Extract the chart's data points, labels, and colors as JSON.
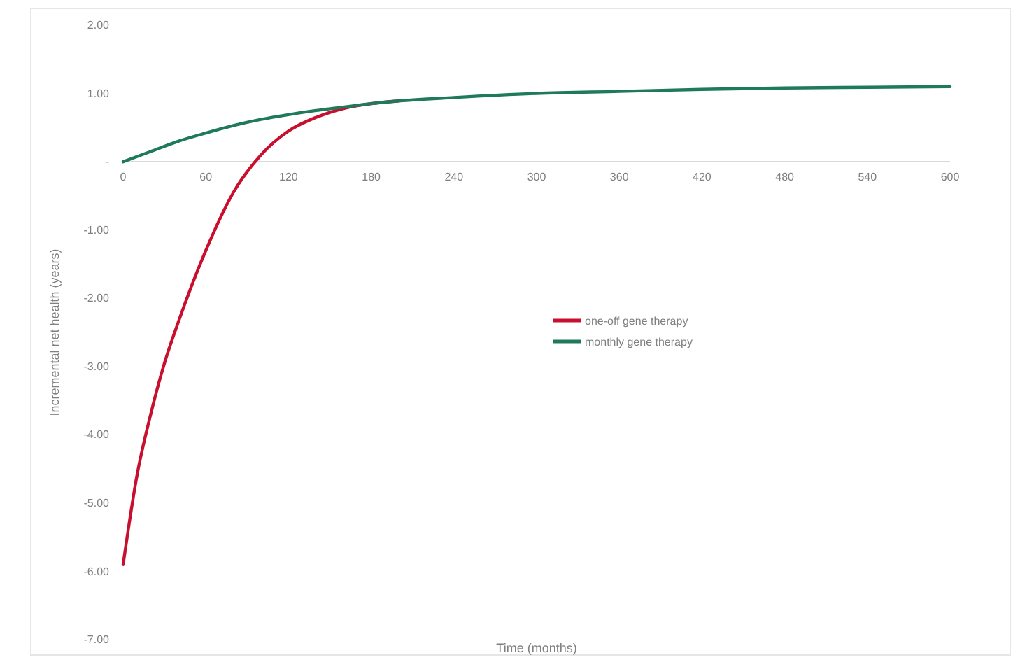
{
  "chart_data": {
    "type": "line",
    "xlabel": "Time (months)",
    "ylabel": "Incremental net health (years)",
    "xlim": [
      0,
      600
    ],
    "xticks": [
      0,
      60,
      120,
      180,
      240,
      300,
      360,
      420,
      480,
      540,
      600
    ],
    "ylim": [
      -7,
      2
    ],
    "yticks": [
      {
        "value": -7,
        "label": "-7.00"
      },
      {
        "value": -6,
        "label": "-6.00"
      },
      {
        "value": -5,
        "label": "-5.00"
      },
      {
        "value": -4,
        "label": "-4.00"
      },
      {
        "value": -3,
        "label": "-3.00"
      },
      {
        "value": -2,
        "label": "-2.00"
      },
      {
        "value": -1,
        "label": "-1.00"
      },
      {
        "value": 0,
        "label": "-"
      },
      {
        "value": 1,
        "label": "1.00"
      },
      {
        "value": 2,
        "label": "2.00"
      }
    ],
    "legend": "center",
    "grid": false,
    "marker": "none",
    "line_style": "solid",
    "series": [
      {
        "name": "one-off gene therapy",
        "color": "#c8102e",
        "x": [
          0,
          10,
          20,
          30,
          40,
          50,
          60,
          80,
          100,
          120,
          140,
          160,
          180,
          200
        ],
        "values": [
          -5.9,
          -4.6,
          -3.7,
          -2.95,
          -2.35,
          -1.8,
          -1.3,
          -0.45,
          0.1,
          0.45,
          0.65,
          0.78,
          0.85,
          0.89
        ]
      },
      {
        "name": "monthly gene therapy",
        "color": "#1f7a5c",
        "x": [
          0,
          20,
          40,
          60,
          80,
          100,
          120,
          140,
          160,
          180,
          200,
          240,
          300,
          360,
          420,
          480,
          540,
          600
        ],
        "values": [
          0,
          0.15,
          0.3,
          0.42,
          0.53,
          0.62,
          0.69,
          0.75,
          0.8,
          0.85,
          0.89,
          0.94,
          1.0,
          1.03,
          1.06,
          1.08,
          1.09,
          1.1
        ]
      }
    ]
  }
}
